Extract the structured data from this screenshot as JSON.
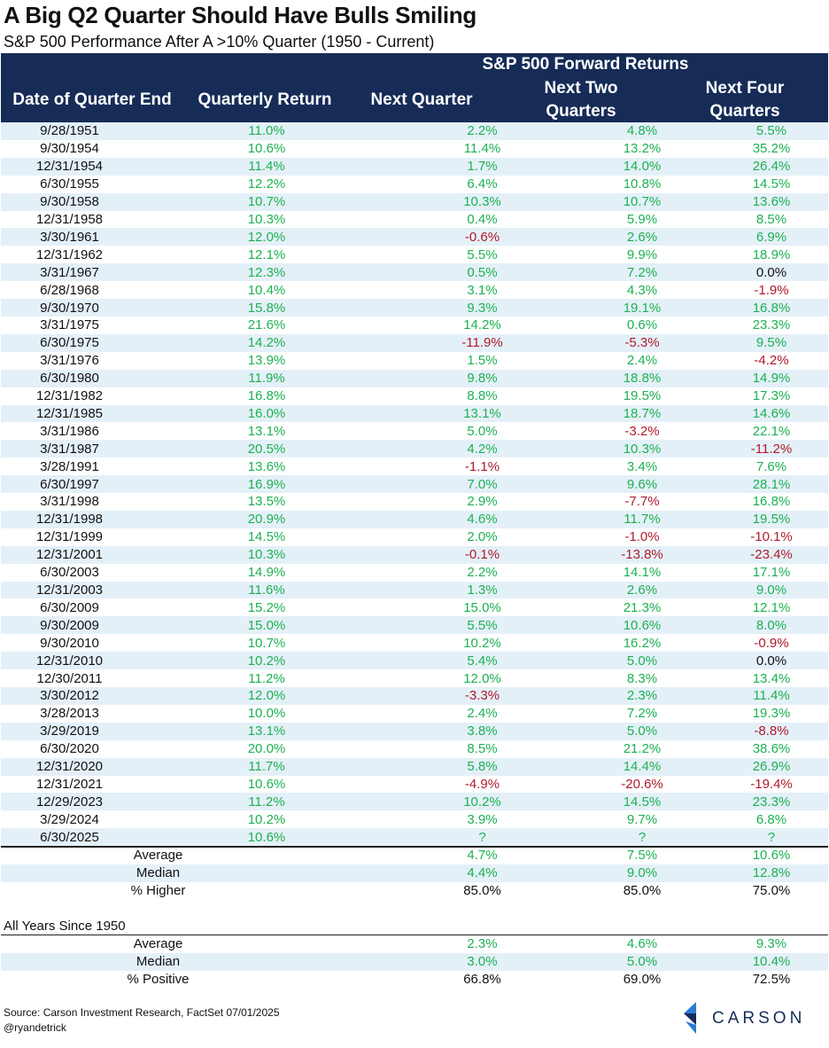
{
  "title": "A Big Q2 Quarter Should Have Bulls Smiling",
  "subtitle": "S&P 500 Performance After A >10% Quarter (1950 - Current)",
  "header": {
    "group": "S&P 500 Forward Returns",
    "col_date": "Date of Quarter End",
    "col_qret": "Quarterly Return",
    "col_next": "Next Quarter",
    "col_two": "Next Two Quarters",
    "col_four": "Next Four Quarters"
  },
  "rows": [
    [
      "9/28/1951",
      "11.0%",
      "2.2%",
      "4.8%",
      "5.5%"
    ],
    [
      "9/30/1954",
      "10.6%",
      "11.4%",
      "13.2%",
      "35.2%"
    ],
    [
      "12/31/1954",
      "11.4%",
      "1.7%",
      "14.0%",
      "26.4%"
    ],
    [
      "6/30/1955",
      "12.2%",
      "6.4%",
      "10.8%",
      "14.5%"
    ],
    [
      "9/30/1958",
      "10.7%",
      "10.3%",
      "10.7%",
      "13.6%"
    ],
    [
      "12/31/1958",
      "10.3%",
      "0.4%",
      "5.9%",
      "8.5%"
    ],
    [
      "3/30/1961",
      "12.0%",
      "-0.6%",
      "2.6%",
      "6.9%"
    ],
    [
      "12/31/1962",
      "12.1%",
      "5.5%",
      "9.9%",
      "18.9%"
    ],
    [
      "3/31/1967",
      "12.3%",
      "0.5%",
      "7.2%",
      "0.0%"
    ],
    [
      "6/28/1968",
      "10.4%",
      "3.1%",
      "4.3%",
      "-1.9%"
    ],
    [
      "9/30/1970",
      "15.8%",
      "9.3%",
      "19.1%",
      "16.8%"
    ],
    [
      "3/31/1975",
      "21.6%",
      "14.2%",
      "0.6%",
      "23.3%"
    ],
    [
      "6/30/1975",
      "14.2%",
      "-11.9%",
      "-5.3%",
      "9.5%"
    ],
    [
      "3/31/1976",
      "13.9%",
      "1.5%",
      "2.4%",
      "-4.2%"
    ],
    [
      "6/30/1980",
      "11.9%",
      "9.8%",
      "18.8%",
      "14.9%"
    ],
    [
      "12/31/1982",
      "16.8%",
      "8.8%",
      "19.5%",
      "17.3%"
    ],
    [
      "12/31/1985",
      "16.0%",
      "13.1%",
      "18.7%",
      "14.6%"
    ],
    [
      "3/31/1986",
      "13.1%",
      "5.0%",
      "-3.2%",
      "22.1%"
    ],
    [
      "3/31/1987",
      "20.5%",
      "4.2%",
      "10.3%",
      "-11.2%"
    ],
    [
      "3/28/1991",
      "13.6%",
      "-1.1%",
      "3.4%",
      "7.6%"
    ],
    [
      "6/30/1997",
      "16.9%",
      "7.0%",
      "9.6%",
      "28.1%"
    ],
    [
      "3/31/1998",
      "13.5%",
      "2.9%",
      "-7.7%",
      "16.8%"
    ],
    [
      "12/31/1998",
      "20.9%",
      "4.6%",
      "11.7%",
      "19.5%"
    ],
    [
      "12/31/1999",
      "14.5%",
      "2.0%",
      "-1.0%",
      "-10.1%"
    ],
    [
      "12/31/2001",
      "10.3%",
      "-0.1%",
      "-13.8%",
      "-23.4%"
    ],
    [
      "6/30/2003",
      "14.9%",
      "2.2%",
      "14.1%",
      "17.1%"
    ],
    [
      "12/31/2003",
      "11.6%",
      "1.3%",
      "2.6%",
      "9.0%"
    ],
    [
      "6/30/2009",
      "15.2%",
      "15.0%",
      "21.3%",
      "12.1%"
    ],
    [
      "9/30/2009",
      "15.0%",
      "5.5%",
      "10.6%",
      "8.0%"
    ],
    [
      "9/30/2010",
      "10.7%",
      "10.2%",
      "16.2%",
      "-0.9%"
    ],
    [
      "12/31/2010",
      "10.2%",
      "5.4%",
      "5.0%",
      "0.0%"
    ],
    [
      "12/30/2011",
      "11.2%",
      "12.0%",
      "8.3%",
      "13.4%"
    ],
    [
      "3/30/2012",
      "12.0%",
      "-3.3%",
      "2.3%",
      "11.4%"
    ],
    [
      "3/28/2013",
      "10.0%",
      "2.4%",
      "7.2%",
      "19.3%"
    ],
    [
      "3/29/2019",
      "13.1%",
      "3.8%",
      "5.0%",
      "-8.8%"
    ],
    [
      "6/30/2020",
      "20.0%",
      "8.5%",
      "21.2%",
      "38.6%"
    ],
    [
      "12/31/2020",
      "11.7%",
      "5.8%",
      "14.4%",
      "26.9%"
    ],
    [
      "12/31/2021",
      "10.6%",
      "-4.9%",
      "-20.6%",
      "-19.4%"
    ],
    [
      "12/29/2023",
      "11.2%",
      "10.2%",
      "14.5%",
      "23.3%"
    ],
    [
      "3/29/2024",
      "10.2%",
      "3.9%",
      "9.7%",
      "6.8%"
    ],
    [
      "6/30/2025",
      "10.6%",
      "?",
      "?",
      "?"
    ]
  ],
  "summary": [
    [
      "Average",
      "4.7%",
      "7.5%",
      "10.6%"
    ],
    [
      "Median",
      "4.4%",
      "9.0%",
      "12.8%"
    ],
    [
      "% Higher",
      "85.0%",
      "85.0%",
      "75.0%"
    ]
  ],
  "all_years": {
    "heading": "All Years Since 1950",
    "rows": [
      [
        "Average",
        "2.3%",
        "4.6%",
        "9.3%"
      ],
      [
        "Median",
        "3.0%",
        "5.0%",
        "10.4%"
      ],
      [
        "% Positive",
        "66.8%",
        "69.0%",
        "72.5%"
      ]
    ]
  },
  "footer": {
    "source": "Source: Carson Investment Research, FactSet 07/01/2025",
    "handle": "@ryandetrick",
    "logo_text": "CARSON"
  },
  "colors": {
    "header_bg": "#162c57",
    "positive": "#1cb152",
    "negative": "#b01a2a",
    "stripe": "#e4f0f8"
  }
}
